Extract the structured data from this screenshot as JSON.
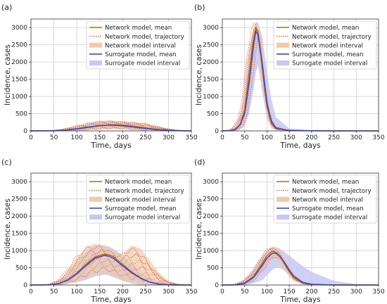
{
  "chart_data": [
    {
      "type": "line",
      "panel_label": "(a)",
      "xlabel": "Time, days",
      "ylabel": "Incidence, cases",
      "xlim": [
        0,
        350
      ],
      "ylim": [
        0,
        3250
      ],
      "xticks": [
        0,
        50,
        100,
        150,
        200,
        250,
        300,
        350
      ],
      "yticks": [
        0,
        500,
        1000,
        1500,
        2000,
        2500,
        3000
      ],
      "grid": true,
      "legend_position": "upper-right",
      "legend": [
        "Network model, mean",
        "Network model, trajectory",
        "Network model interval",
        "Surrogate model, mean",
        "Surrogate model interval"
      ],
      "series": [
        {
          "name": "Network model, mean",
          "x": [
            0,
            50,
            75,
            100,
            125,
            150,
            175,
            200,
            225,
            250,
            275,
            300,
            325,
            350
          ],
          "y": [
            0,
            5,
            20,
            55,
            100,
            150,
            180,
            170,
            130,
            85,
            45,
            20,
            5,
            0
          ]
        },
        {
          "name": "Surrogate model, mean",
          "x": [
            0,
            50,
            75,
            100,
            125,
            150,
            175,
            200,
            225,
            250,
            275,
            300,
            325,
            350
          ],
          "y": [
            0,
            5,
            25,
            60,
            110,
            155,
            170,
            150,
            110,
            70,
            35,
            15,
            5,
            0
          ]
        },
        {
          "name": "Network model interval",
          "x": [
            0,
            50,
            75,
            100,
            125,
            150,
            175,
            200,
            225,
            250,
            275,
            300,
            325,
            350
          ],
          "lower": [
            0,
            0,
            0,
            5,
            20,
            40,
            50,
            40,
            20,
            5,
            0,
            0,
            0,
            0
          ],
          "upper": [
            0,
            15,
            60,
            150,
            230,
            290,
            300,
            280,
            260,
            230,
            150,
            70,
            20,
            0
          ]
        },
        {
          "name": "Surrogate model interval",
          "x": [
            0,
            50,
            75,
            100,
            125,
            150,
            175,
            200,
            225,
            250,
            275,
            300,
            325,
            350
          ],
          "lower": [
            0,
            0,
            5,
            15,
            40,
            60,
            70,
            55,
            30,
            10,
            0,
            0,
            0,
            0
          ],
          "upper": [
            0,
            15,
            50,
            120,
            200,
            260,
            280,
            260,
            210,
            150,
            90,
            40,
            10,
            0
          ]
        }
      ]
    },
    {
      "type": "line",
      "panel_label": "(b)",
      "xlabel": "Time, days",
      "ylabel": "Incidence, cases",
      "xlim": [
        0,
        350
      ],
      "ylim": [
        0,
        3250
      ],
      "xticks": [
        0,
        50,
        100,
        150,
        200,
        250,
        300,
        350
      ],
      "yticks": [
        0,
        500,
        1000,
        1500,
        2000,
        2500,
        3000
      ],
      "grid": true,
      "legend_position": "upper-right",
      "legend": [
        "Network model, mean",
        "Network model, trajectory",
        "Network model interval",
        "Surrogate model, mean",
        "Surrogate model interval"
      ],
      "series": [
        {
          "name": "Network model, mean",
          "x": [
            0,
            20,
            30,
            40,
            50,
            60,
            70,
            75,
            80,
            90,
            100,
            110,
            120,
            150,
            200,
            250,
            300,
            350
          ],
          "y": [
            0,
            10,
            60,
            200,
            600,
            1700,
            2700,
            3000,
            2900,
            1800,
            700,
            200,
            60,
            10,
            5,
            0,
            0,
            0
          ]
        },
        {
          "name": "Surrogate model, mean",
          "x": [
            0,
            20,
            30,
            40,
            50,
            60,
            70,
            75,
            80,
            90,
            100,
            110,
            120,
            150,
            200,
            250,
            300,
            350
          ],
          "y": [
            0,
            10,
            50,
            180,
            500,
            1400,
            2500,
            2900,
            2800,
            1900,
            800,
            280,
            90,
            10,
            5,
            0,
            0,
            0
          ]
        },
        {
          "name": "Network model interval",
          "x": [
            0,
            20,
            30,
            40,
            50,
            60,
            70,
            75,
            80,
            90,
            100,
            110,
            120,
            150,
            200,
            250,
            300,
            350
          ],
          "lower": [
            0,
            0,
            20,
            80,
            300,
            1100,
            2200,
            2700,
            2500,
            1200,
            400,
            100,
            20,
            0,
            0,
            0,
            0,
            0
          ],
          "upper": [
            0,
            30,
            130,
            400,
            1000,
            2300,
            3050,
            3150,
            3100,
            2400,
            1100,
            400,
            130,
            30,
            10,
            0,
            0,
            0
          ]
        },
        {
          "name": "Surrogate model interval",
          "x": [
            0,
            20,
            30,
            40,
            50,
            60,
            70,
            75,
            80,
            90,
            100,
            110,
            120,
            150,
            200,
            250,
            300,
            350
          ],
          "lower": [
            0,
            0,
            10,
            50,
            150,
            500,
            1200,
            1700,
            1900,
            1100,
            350,
            80,
            20,
            0,
            0,
            0,
            0,
            0
          ],
          "upper": [
            0,
            40,
            150,
            450,
            1100,
            2300,
            3000,
            3150,
            3150,
            2700,
            1700,
            900,
            400,
            70,
            20,
            10,
            0,
            0
          ]
        }
      ]
    },
    {
      "type": "line",
      "panel_label": "(c)",
      "xlabel": "Time, days",
      "ylabel": "Incidence, cases",
      "xlim": [
        0,
        350
      ],
      "ylim": [
        0,
        3250
      ],
      "xticks": [
        0,
        50,
        100,
        150,
        200,
        250,
        300,
        350
      ],
      "yticks": [
        0,
        500,
        1000,
        1500,
        2000,
        2500,
        3000
      ],
      "grid": true,
      "legend_position": "upper-right",
      "legend": [
        "Network model, mean",
        "Network model, trajectory",
        "Network model interval",
        "Surrogate model, mean",
        "Surrogate model interval"
      ],
      "series": [
        {
          "name": "Network model, mean",
          "x": [
            0,
            40,
            60,
            80,
            100,
            120,
            140,
            160,
            170,
            180,
            200,
            220,
            240,
            260,
            280,
            300,
            320,
            350
          ],
          "y": [
            0,
            5,
            40,
            150,
            350,
            600,
            820,
            900,
            880,
            820,
            600,
            380,
            200,
            80,
            25,
            5,
            0,
            0
          ]
        },
        {
          "name": "Surrogate model, mean",
          "x": [
            0,
            40,
            60,
            80,
            100,
            120,
            140,
            160,
            170,
            180,
            200,
            220,
            240,
            260,
            280,
            300,
            320,
            350
          ],
          "y": [
            0,
            5,
            40,
            140,
            320,
            560,
            780,
            860,
            840,
            770,
            560,
            350,
            190,
            80,
            25,
            5,
            0,
            0
          ]
        },
        {
          "name": "Network model interval",
          "x": [
            0,
            40,
            60,
            80,
            100,
            120,
            140,
            160,
            170,
            180,
            200,
            220,
            240,
            260,
            280,
            300,
            320,
            350
          ],
          "lower": [
            0,
            0,
            5,
            40,
            100,
            200,
            300,
            350,
            300,
            250,
            150,
            60,
            20,
            5,
            0,
            0,
            0,
            0
          ],
          "upper": [
            0,
            20,
            120,
            400,
            800,
            1100,
            1200,
            1150,
            1100,
            1000,
            900,
            1150,
            1050,
            700,
            350,
            120,
            30,
            0
          ]
        },
        {
          "name": "Surrogate model interval",
          "x": [
            0,
            40,
            60,
            80,
            100,
            120,
            140,
            160,
            170,
            180,
            200,
            220,
            240,
            260,
            280,
            300,
            320,
            350
          ],
          "lower": [
            0,
            0,
            5,
            30,
            80,
            150,
            250,
            300,
            280,
            230,
            120,
            40,
            10,
            0,
            0,
            0,
            0,
            0
          ],
          "upper": [
            0,
            20,
            100,
            330,
            650,
            950,
            1150,
            1150,
            1120,
            1050,
            850,
            600,
            380,
            200,
            90,
            30,
            10,
            0
          ]
        }
      ]
    },
    {
      "type": "line",
      "panel_label": "(d)",
      "xlabel": "Time, days",
      "ylabel": "Incidence, cases",
      "xlim": [
        0,
        350
      ],
      "ylim": [
        0,
        3250
      ],
      "xticks": [
        0,
        50,
        100,
        150,
        200,
        250,
        300,
        350
      ],
      "yticks": [
        0,
        500,
        1000,
        1500,
        2000,
        2500,
        3000
      ],
      "grid": true,
      "legend_position": "upper-right",
      "legend": [
        "Network model, mean",
        "Network model, trajectory",
        "Network model interval",
        "Surrogate model, mean",
        "Surrogate model interval"
      ],
      "series": [
        {
          "name": "Network model, mean",
          "x": [
            0,
            30,
            50,
            70,
            90,
            100,
            110,
            115,
            120,
            130,
            140,
            150,
            160,
            180,
            200,
            250,
            300,
            350
          ],
          "y": [
            0,
            5,
            60,
            250,
            650,
            850,
            960,
            980,
            950,
            820,
            600,
            380,
            200,
            50,
            10,
            0,
            0,
            0
          ]
        },
        {
          "name": "Surrogate model, mean",
          "x": [
            0,
            30,
            50,
            70,
            90,
            100,
            110,
            115,
            120,
            130,
            140,
            150,
            160,
            180,
            200,
            250,
            300,
            350
          ],
          "y": [
            0,
            5,
            50,
            220,
            580,
            780,
            900,
            930,
            920,
            820,
            640,
            440,
            260,
            80,
            20,
            0,
            0,
            0
          ]
        },
        {
          "name": "Network model interval",
          "x": [
            0,
            30,
            50,
            70,
            90,
            100,
            110,
            115,
            120,
            130,
            140,
            150,
            160,
            180,
            200,
            250,
            300,
            350
          ],
          "lower": [
            0,
            0,
            20,
            150,
            450,
            650,
            760,
            780,
            750,
            620,
            420,
            240,
            110,
            20,
            0,
            0,
            0,
            0
          ],
          "upper": [
            0,
            20,
            120,
            380,
            820,
            1000,
            1100,
            1120,
            1100,
            1000,
            800,
            560,
            330,
            100,
            25,
            0,
            0,
            0
          ]
        },
        {
          "name": "Surrogate model interval",
          "x": [
            0,
            30,
            50,
            70,
            90,
            100,
            110,
            115,
            120,
            130,
            140,
            150,
            160,
            180,
            200,
            250,
            300,
            350
          ],
          "lower": [
            0,
            0,
            10,
            50,
            150,
            280,
            420,
            480,
            520,
            500,
            400,
            260,
            140,
            40,
            10,
            0,
            0,
            0
          ],
          "upper": [
            0,
            30,
            150,
            450,
            850,
            1000,
            1100,
            1120,
            1100,
            1050,
            950,
            850,
            750,
            550,
            380,
            120,
            30,
            0
          ]
        }
      ]
    }
  ],
  "colors": {
    "network_mean": "#b86800",
    "network_trajectory": "#e07a3f",
    "network_interval": "#f0c9a8",
    "surrogate_mean": "#3b48d6",
    "surrogate_interval": "#c5c8f2",
    "trajectory_hues": [
      "#e8553f",
      "#e58b2e",
      "#e05a8a",
      "#d88a1e",
      "#c0503a"
    ]
  }
}
